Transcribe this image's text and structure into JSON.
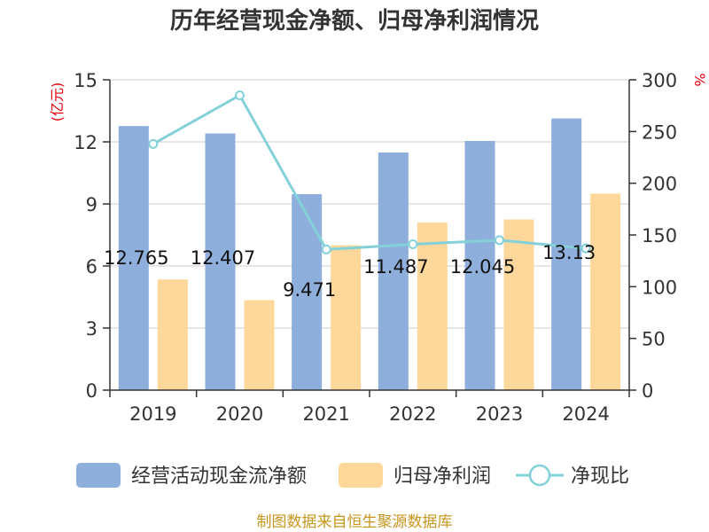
{
  "chart_data": {
    "type": "bar",
    "title": "历年经营现金净额、归母净利润情况",
    "categories": [
      "2019",
      "2020",
      "2021",
      "2022",
      "2023",
      "2024"
    ],
    "series": [
      {
        "name": "经营活动现金流净额",
        "type": "bar",
        "axis": "left",
        "color": "#8eaedb",
        "values": [
          12.765,
          12.407,
          9.471,
          11.487,
          12.045,
          13.13
        ],
        "labels": [
          "12.765",
          "12.407",
          "9.471",
          "11.487",
          "12.045",
          "13.13"
        ]
      },
      {
        "name": "归母净利润",
        "type": "bar",
        "axis": "left",
        "color": "#fdd89a",
        "values": [
          5.35,
          4.35,
          7.0,
          8.1,
          8.25,
          9.5
        ]
      },
      {
        "name": "净现比",
        "type": "line",
        "axis": "right",
        "color": "#84d1da",
        "values": [
          238,
          285,
          136,
          141,
          145,
          137
        ]
      }
    ],
    "y_left": {
      "unit": "(亿元)",
      "min": 0,
      "max": 15,
      "ticks": [
        0,
        3,
        6,
        9,
        12,
        15
      ]
    },
    "y_right": {
      "unit": "%",
      "min": 0,
      "max": 300,
      "ticks": [
        0,
        50,
        100,
        150,
        200,
        250,
        300
      ]
    },
    "grid": true,
    "legend": "bottom",
    "source": "制图数据来自恒生聚源数据库"
  }
}
